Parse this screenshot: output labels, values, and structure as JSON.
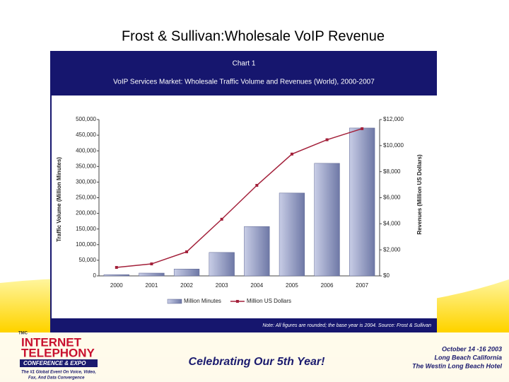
{
  "slide": {
    "title": "Frost & Sullivan:Wholesale VoIP Revenue",
    "banner": {
      "tmc": "TMC",
      "brand1": "INTERNET",
      "brand2": "TELEPHONY",
      "brand3": "CONFERENCE & EXPO",
      "tagline1": "The #1 Global Event On Voice, Video,",
      "tagline2": "Fax, And Data Convergence",
      "slogan": "Celebrating Our 5th Year!",
      "date": "October 14 -16 2003",
      "place": "Long Beach California",
      "venue": "The Westin Long Beach Hotel"
    }
  },
  "chart_data": {
    "type": "bar",
    "header": "Chart 1",
    "title": "VoIP Services Market: Wholesale Traffic Volume and Revenues (World), 2000-2007",
    "note": "Note: All figures are rounded; the base year is 2004. Source: Frost & Sullivan",
    "y_label": "Traffic Volume (Million Minutes)",
    "y2_label": "Revenues (Million US Dollars)",
    "categories": [
      "2000",
      "2001",
      "2002",
      "2003",
      "2004",
      "2005",
      "2006",
      "2007"
    ],
    "series": [
      {
        "name": "Million Minutes",
        "type": "bar",
        "color": "#9aa3c9",
        "values": [
          4000,
          9000,
          22000,
          75000,
          158000,
          265000,
          360000,
          473000
        ]
      },
      {
        "name": "Million US Dollars",
        "type": "line",
        "axis": "y2",
        "color": "#a3203a",
        "values": [
          650,
          920,
          1850,
          4350,
          6950,
          9350,
          10450,
          11300
        ]
      }
    ],
    "ylim": [
      0,
      500000
    ],
    "yticks": [
      0,
      {
        "value": 50000,
        "label": "50,000"
      },
      {
        "value": 100000,
        "label": "100,000"
      },
      {
        "value": 150000,
        "label": "150,000"
      },
      {
        "value": 200000,
        "label": "200,000"
      },
      {
        "value": 250000,
        "label": "250,000"
      },
      {
        "value": 300000,
        "label": "300,000"
      },
      {
        "value": 350000,
        "label": "350,000"
      },
      {
        "value": 400000,
        "label": "400,000"
      },
      {
        "value": 450000,
        "label": "450,000"
      },
      {
        "value": 500000,
        "label": "500,000"
      }
    ],
    "y2lim": [
      0,
      12000
    ],
    "y2ticks": [
      {
        "value": 0,
        "label": "$0"
      },
      {
        "value": 2000,
        "label": "$2,000"
      },
      {
        "value": 4000,
        "label": "$4,000"
      },
      {
        "value": 6000,
        "label": "$6,000"
      },
      {
        "value": 8000,
        "label": "$8,000"
      },
      {
        "value": 10000,
        "label": "$10,000"
      },
      {
        "value": 12000,
        "label": "$12,000"
      }
    ],
    "legend": "bottom"
  }
}
